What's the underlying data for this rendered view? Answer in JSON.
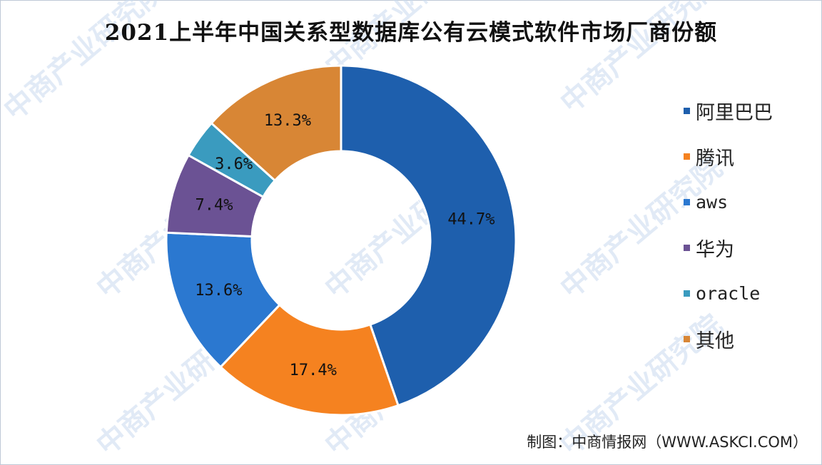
{
  "chart_data": {
    "type": "pie",
    "donut": true,
    "title": "2021上半年中国关系型数据库公有云模式软件市场厂商份额",
    "slices": [
      {
        "label": "阿里巴巴",
        "value": 44.7,
        "display": "44.7%",
        "color": "#1e5fad"
      },
      {
        "label": "腾讯",
        "value": 17.4,
        "display": "17.4%",
        "color": "#f58220"
      },
      {
        "label": "aws",
        "value": 13.6,
        "display": "13.6%",
        "color": "#2b78d0"
      },
      {
        "label": "华为",
        "value": 7.4,
        "display": "7.4%",
        "color": "#6b5294"
      },
      {
        "label": "oracle",
        "value": 3.6,
        "display": "3.6%",
        "color": "#3a9bbf"
      },
      {
        "label": "其他",
        "value": 13.3,
        "display": "13.3%",
        "color": "#d88635"
      }
    ],
    "legend_position": "right"
  },
  "source_text": "制图：中商情报网（WWW.ASKCI.COM）",
  "watermark": {
    "text": "中商产业研究院",
    "color": "#c9d9ee"
  }
}
